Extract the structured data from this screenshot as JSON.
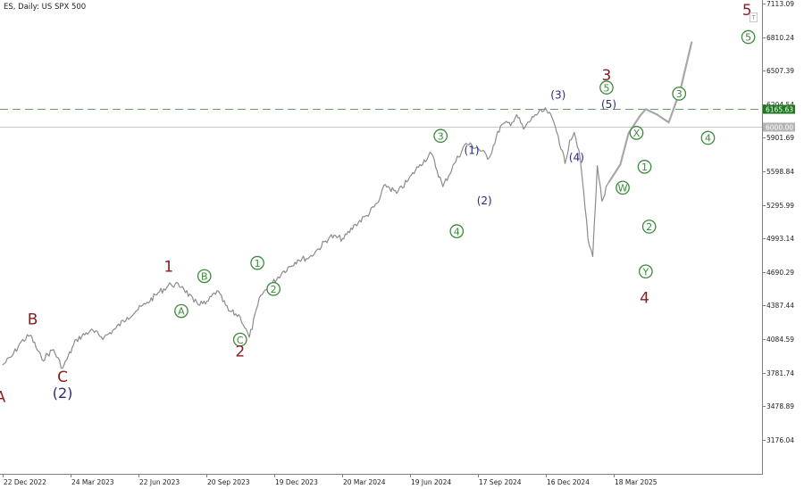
{
  "header": {
    "symbol_label": "ES, Daily:  US SPX 500",
    "oneclick_icon": "oneclick-trading-icon"
  },
  "colors": {
    "price": "#8c8c8c",
    "projection": "#a8a8a8",
    "dashed_level": "#6a9a6a",
    "current_line": "#c8c8c8",
    "level_tag_bg": "#1e7a1e",
    "current_tag_bg": "#b4b4b4",
    "primary_label": "#8b1a1a",
    "intermediate_label": "#2a2a7a",
    "minor_label": "#3a8a3a"
  },
  "chart_data": {
    "type": "line",
    "title": "",
    "ylim": [
      3000,
      7113.09
    ],
    "y_ticks": [
      "7113.09",
      "6810.24",
      "6507.39",
      "6204.54",
      "5901.69",
      "5598.84",
      "5295.99",
      "4993.14",
      "4690.29",
      "4387.44",
      "4084.59",
      "3781.74",
      "3478.89",
      "3176.04"
    ],
    "x_ticks": [
      "22 Dec 2022",
      "24 Mar 2023",
      "22 Jun 2023",
      "20 Sep 2023",
      "19 Dec 2023",
      "20 Mar 2024",
      "19 Jun 2024",
      "17 Sep 2024",
      "16 Dec 2024",
      "18 Mar 2025"
    ],
    "x_domain_index": [
      0,
      60.5
    ],
    "price_series": {
      "name": "",
      "x": [
        0,
        0.8,
        1.6,
        2.4,
        3.4,
        4.4,
        5.2,
        6.4,
        7.6,
        8.8,
        9.8,
        10.8,
        11.6,
        12.4,
        13.6,
        14.6,
        15.6,
        16.6,
        17.6,
        18.6,
        19.6,
        20.6,
        21.4,
        22.4,
        23.4,
        24.4,
        25.6,
        26.6,
        27.4,
        28.4,
        29.6,
        30.6,
        31.6,
        32.6,
        33.2,
        34.2,
        35.2,
        36.2,
        37.2,
        38.2,
        39.2,
        40.2,
        41.2,
        42.2,
        43.2,
        44.2,
        44.6,
        45.2,
        46.2,
        47.2,
        47.8,
        48.2,
        48.8,
        49.2,
        49.6,
        50.0,
        50.4,
        50.8,
        51.2,
        51.6,
        52.0,
        52.6
      ],
      "y": [
        3850,
        3930,
        4060,
        4120,
        3900,
        3990,
        3820,
        4080,
        4160,
        4100,
        4180,
        4280,
        4340,
        4400,
        4510,
        4580,
        4560,
        4420,
        4400,
        4520,
        4340,
        4290,
        4100,
        4480,
        4590,
        4700,
        4800,
        4820,
        4900,
        5010,
        4990,
        5120,
        5200,
        5320,
        5480,
        5400,
        5520,
        5660,
        5760,
        5460,
        5670,
        5850,
        5810,
        5720,
        6010,
        6040,
        6110,
        5980,
        6110,
        6150,
        6050,
        5920,
        5670,
        5880,
        5950,
        5790,
        5430,
        4980,
        4830,
        5650,
        5330,
        5500
      ]
    },
    "projection_path": {
      "x": [
        52.6,
        53.6,
        54.3,
        55.3,
        55.8,
        56.8,
        57.8,
        58.8,
        59.8
      ],
      "y": [
        5500,
        5660,
        5940,
        6100,
        6160,
        6110,
        6040,
        6330,
        6770
      ]
    },
    "horizontal_levels": [
      {
        "value": 6165.63,
        "label": "6165.63",
        "style": "dashed"
      },
      {
        "value": 6000.0,
        "label": "6000.00",
        "style": "solid"
      }
    ],
    "wave_labels": [
      {
        "text": "A",
        "level": "primary",
        "x": -0.2,
        "y": 3560
      },
      {
        "text": "B",
        "level": "primary",
        "x": 2.6,
        "y": 4262
      },
      {
        "text": "C",
        "level": "primary",
        "x": 5.2,
        "y": 3744
      },
      {
        "text": "(2)",
        "level": "intermediate",
        "x": 5.2,
        "y": 3596
      },
      {
        "text": "1",
        "level": "primary",
        "x": 14.4,
        "y": 4737
      },
      {
        "text": "A",
        "level": "minor",
        "circled": true,
        "x": 15.5,
        "y": 4338
      },
      {
        "text": "B",
        "level": "minor",
        "circled": true,
        "x": 17.5,
        "y": 4653
      },
      {
        "text": "C",
        "level": "minor",
        "circled": true,
        "x": 20.6,
        "y": 4080
      },
      {
        "text": "2",
        "level": "primary",
        "x": 20.6,
        "y": 3970
      },
      {
        "text": "1",
        "level": "minor",
        "circled": true,
        "x": 22.1,
        "y": 4772
      },
      {
        "text": "2",
        "level": "minor",
        "circled": true,
        "x": 23.5,
        "y": 4537
      },
      {
        "text": "3",
        "level": "minor",
        "circled": true,
        "x": 38.0,
        "y": 5919
      },
      {
        "text": "4",
        "level": "minor",
        "circled": true,
        "x": 39.4,
        "y": 5058
      },
      {
        "text": "(1)",
        "level": "intermediate",
        "x": 40.7,
        "y": 5799
      },
      {
        "text": "(2)",
        "level": "intermediate",
        "x": 41.8,
        "y": 5346
      },
      {
        "text": "(3)",
        "level": "intermediate",
        "x": 48.2,
        "y": 6300
      },
      {
        "text": "(4)",
        "level": "intermediate",
        "x": 49.8,
        "y": 5736
      },
      {
        "text": "3",
        "level": "primary",
        "x": 52.4,
        "y": 6465
      },
      {
        "text": "5",
        "level": "minor",
        "circled": true,
        "x": 52.4,
        "y": 6355
      },
      {
        "text": "(5)",
        "level": "intermediate",
        "x": 52.6,
        "y": 6216
      },
      {
        "text": "X",
        "level": "minor",
        "circled": true,
        "x": 55.0,
        "y": 5946
      },
      {
        "text": "W",
        "level": "minor",
        "circled": true,
        "x": 53.8,
        "y": 5451
      },
      {
        "text": "1",
        "level": "minor",
        "circled": true,
        "x": 55.7,
        "y": 5640
      },
      {
        "text": "2",
        "level": "minor",
        "circled": true,
        "x": 56.1,
        "y": 5100
      },
      {
        "text": "Y",
        "level": "minor",
        "circled": true,
        "x": 55.8,
        "y": 4695
      },
      {
        "text": "4",
        "level": "primary",
        "x": 55.7,
        "y": 4456
      },
      {
        "text": "3",
        "level": "minor",
        "circled": true,
        "x": 58.7,
        "y": 6300
      },
      {
        "text": "4",
        "level": "minor",
        "circled": true,
        "x": 61.2,
        "y": 5901
      },
      {
        "text": "5",
        "level": "primary",
        "x": 64.6,
        "y": 7052
      },
      {
        "text": "5",
        "level": "minor",
        "circled": true,
        "x": 64.7,
        "y": 6811
      }
    ]
  }
}
